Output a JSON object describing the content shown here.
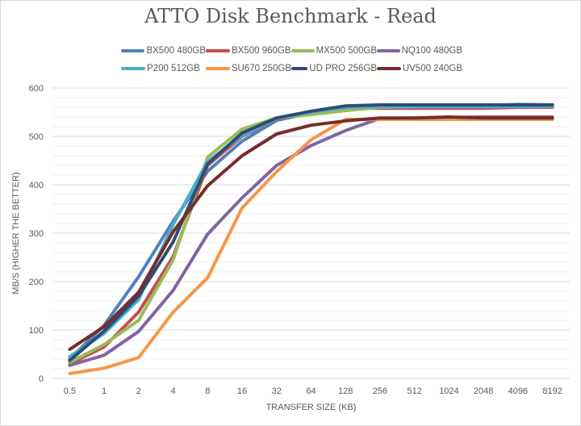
{
  "chart_data": {
    "type": "line",
    "title": "ATTO Disk Benchmark - Read",
    "xlabel": "TRANSFER SIZE (KB)",
    "ylabel": "MB/S (HIGHER THE BETTER)",
    "ylim": [
      0,
      600
    ],
    "yticks": [
      0,
      100,
      200,
      300,
      400,
      500,
      600
    ],
    "grid": true,
    "legend_position": "top",
    "categories": [
      "0.5",
      "1",
      "2",
      "4",
      "8",
      "16",
      "32",
      "64",
      "128",
      "256",
      "512",
      "1024",
      "2048",
      "4096",
      "8192"
    ],
    "series": [
      {
        "name": "BX500 480GB",
        "color": "#4f81bd",
        "values": [
          40,
          110,
          210,
          325,
          428,
          490,
          533,
          548,
          562,
          563,
          563,
          564,
          564,
          566,
          565
        ]
      },
      {
        "name": "BX500 960GB",
        "color": "#c0504d",
        "values": [
          30,
          65,
          137,
          252,
          440,
          500,
          536,
          546,
          558,
          558,
          558,
          558,
          558,
          560,
          560
        ]
      },
      {
        "name": "MX500 500GB",
        "color": "#9bbb59",
        "values": [
          33,
          70,
          120,
          245,
          457,
          515,
          538,
          545,
          553,
          560,
          561,
          561,
          561,
          562,
          562
        ]
      },
      {
        "name": "NQ100 480GB",
        "color": "#8064a2",
        "values": [
          27,
          48,
          97,
          182,
          298,
          373,
          440,
          481,
          512,
          537,
          538,
          539,
          540,
          540,
          540
        ]
      },
      {
        "name": "P200 512GB",
        "color": "#4bacc6",
        "values": [
          45,
          93,
          163,
          318,
          448,
          502,
          537,
          550,
          560,
          561,
          561,
          561,
          561,
          562,
          562
        ]
      },
      {
        "name": "SU670 250GB",
        "color": "#f79646",
        "values": [
          10,
          21,
          43,
          137,
          208,
          352,
          427,
          493,
          535,
          535,
          535,
          535,
          535,
          535,
          535
        ]
      },
      {
        "name": "UD PRO 256GB",
        "color": "#2c4d75",
        "values": [
          37,
          98,
          170,
          282,
          443,
          507,
          538,
          552,
          563,
          565,
          565,
          565,
          565,
          565,
          565
        ]
      },
      {
        "name": "UV500 240GB",
        "color": "#772c2a",
        "values": [
          60,
          107,
          178,
          303,
          398,
          460,
          505,
          523,
          532,
          538,
          538,
          540,
          538,
          538,
          538
        ]
      }
    ]
  }
}
